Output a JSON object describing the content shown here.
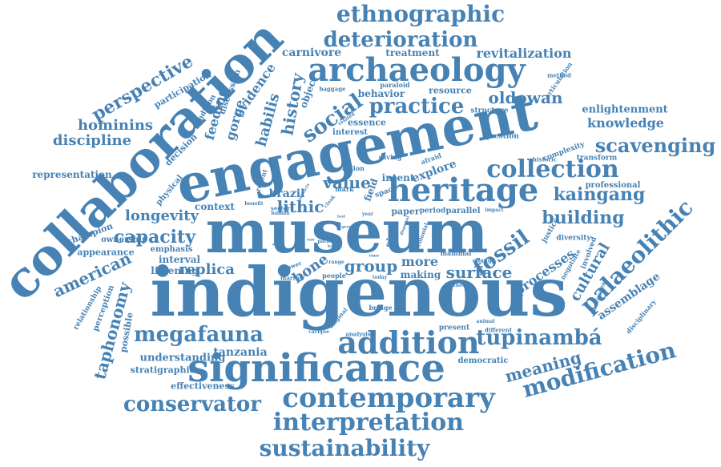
{
  "words": [
    "indigenous",
    "museum",
    "engagement",
    "collaboration",
    "significance",
    "heritage",
    "archaeology",
    "addition",
    "contemporary",
    "interpretation",
    "sustainability",
    "palaeolithic",
    "collection",
    "ethnographic",
    "deterioration",
    "practice",
    "social",
    "modification",
    "tupinambá",
    "megafauna",
    "conservator",
    "scavenging",
    "perspective",
    "fossil",
    "kaingang",
    "building",
    "capacity",
    "longevity",
    "taphonomy",
    "hominins",
    "discipline",
    "history",
    "oldowan",
    "revitalization",
    "knowledge",
    "meaning",
    "surface",
    "american",
    "group",
    "lithic",
    "value",
    "replica",
    "bone",
    "cultural",
    "habilis",
    "gorge",
    "feeding",
    "evidence",
    "representation",
    "carnivore",
    "treatment",
    "enlightenment",
    "processes",
    "tanzania",
    "understanding",
    "more",
    "assemblage",
    "brazil",
    "making",
    "participation",
    "object",
    "interval",
    "listening",
    "emphasis",
    "context",
    "stratigraphic",
    "effectiveness",
    "possible",
    "ownership",
    "perception",
    "relationship",
    "appearance",
    "champion",
    "physical",
    "decision",
    "condition",
    "discussion",
    "behavior",
    "resource",
    "essence",
    "interest",
    "structure",
    "question",
    "complexity",
    "historic",
    "transform",
    "professional",
    "explore",
    "intent",
    "field",
    "space",
    "afraid",
    "saving",
    "action",
    "mark",
    "recent",
    "benefit",
    "sector",
    "human",
    "paper",
    "period",
    "parallel",
    "impact",
    "site",
    "colonial",
    "mammal",
    "change",
    "diversity",
    "involved",
    "negotiate",
    "justice",
    "carcasses",
    "disciplinary",
    "marrow",
    "people",
    "range",
    "power",
    "path",
    "today",
    "thesis",
    "bridge",
    "original",
    "cacique",
    "analysis",
    "present",
    "different",
    "democratic",
    "animal",
    "paraloid",
    "related",
    "method",
    "articulation",
    "baggage",
    "cloak",
    "year",
    "last",
    "artifacts",
    "babalu",
    "use",
    "grew",
    "dispersal",
    "kata",
    "time"
  ]
}
